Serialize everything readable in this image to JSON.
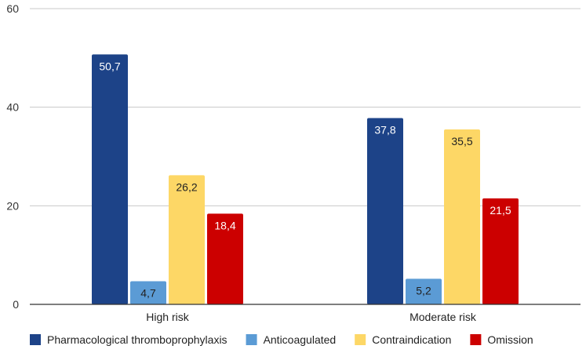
{
  "chart_data": {
    "type": "bar",
    "title": "",
    "xlabel": "",
    "ylabel": "",
    "ylim": [
      0,
      60
    ],
    "yticks": [
      "0",
      "20",
      "40",
      "60"
    ],
    "categories": [
      "High risk",
      "Moderate risk"
    ],
    "series": [
      {
        "name": "Pharmacological thromboprophylaxis",
        "color": "#1d4388",
        "label_color": "#ffffff",
        "values": [
          50.7,
          37.8
        ],
        "labels": [
          "50,7",
          "37,8"
        ]
      },
      {
        "name": "Anticoagulated",
        "color": "#5b9bd5",
        "label_color": "#222222",
        "values": [
          4.7,
          5.2
        ],
        "labels": [
          "4,7",
          "5,2"
        ]
      },
      {
        "name": "Contraindication",
        "color": "#fdd766",
        "label_color": "#222222",
        "values": [
          26.2,
          35.5
        ],
        "labels": [
          "26,2",
          "35,5"
        ]
      },
      {
        "name": "Omission",
        "color": "#cc0000",
        "label_color": "#ffffff",
        "values": [
          18.4,
          21.5
        ],
        "labels": [
          "18,4",
          "21,5"
        ]
      }
    ],
    "legend_position": "bottom"
  }
}
